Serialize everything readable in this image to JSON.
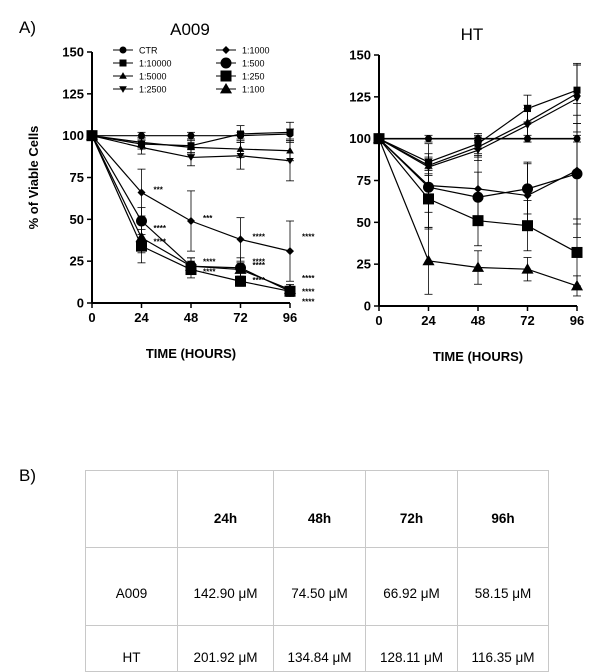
{
  "panel_labels": {
    "a": "A)",
    "b": "B)"
  },
  "chart_data": [
    {
      "type": "line",
      "title": "A009",
      "xlabel": "TIME (HOURS)",
      "ylabel": "% of Viable Cells",
      "xlim": [
        0,
        96
      ],
      "ylim": [
        0,
        150
      ],
      "xticks": [
        "0",
        "24",
        "48",
        "72",
        "96"
      ],
      "yticks": [
        "0",
        "25",
        "50",
        "75",
        "100",
        "125",
        "150"
      ],
      "x": [
        0,
        24,
        48,
        72,
        96
      ],
      "series": [
        {
          "name": "CTR",
          "marker": "circle-small",
          "values": [
            100,
            100,
            100,
            100,
            101
          ],
          "err": [
            0,
            2,
            2,
            2,
            3
          ]
        },
        {
          "name": "1:10000",
          "marker": "square-small",
          "values": [
            100,
            95,
            94,
            101,
            102
          ],
          "err": [
            0,
            3,
            4,
            5,
            6
          ]
        },
        {
          "name": "1:5000",
          "marker": "triangle-up-small",
          "values": [
            100,
            96,
            93,
            92,
            91
          ],
          "err": [
            0,
            3,
            4,
            5,
            6
          ]
        },
        {
          "name": "1:2500",
          "marker": "triangle-down-small",
          "values": [
            100,
            93,
            87,
            88,
            85
          ],
          "err": [
            0,
            4,
            5,
            8,
            12
          ]
        },
        {
          "name": "1:1000",
          "marker": "diamond",
          "values": [
            100,
            66,
            49,
            38,
            31
          ],
          "err": [
            0,
            14,
            18,
            13,
            18
          ]
        },
        {
          "name": "1:500",
          "marker": "circle",
          "values": [
            100,
            49,
            22,
            21,
            7
          ],
          "err": [
            0,
            8,
            5,
            6,
            3
          ]
        },
        {
          "name": "1:250",
          "marker": "square",
          "values": [
            100,
            34,
            20,
            13,
            7
          ],
          "err": [
            0,
            10,
            5,
            3,
            3
          ]
        },
        {
          "name": "1:100",
          "marker": "triangle-up",
          "values": [
            100,
            39,
            22,
            20,
            8
          ],
          "err": [
            0,
            9,
            5,
            4,
            3
          ]
        }
      ],
      "annotations": [
        {
          "x": 24,
          "y": 66,
          "text": "***"
        },
        {
          "x": 24,
          "y": 43,
          "text": "****"
        },
        {
          "x": 24,
          "y": 35,
          "text": "****"
        },
        {
          "x": 48,
          "y": 49,
          "text": "***"
        },
        {
          "x": 48,
          "y": 23,
          "text": "****"
        },
        {
          "x": 48,
          "y": 17,
          "text": "****"
        },
        {
          "x": 72,
          "y": 38,
          "text": "****"
        },
        {
          "x": 72,
          "y": 21,
          "text": "****"
        },
        {
          "x": 72,
          "y": 12,
          "text": "****"
        },
        {
          "x": 72,
          "y": 23,
          "text": "****"
        },
        {
          "x": 96,
          "y": 38,
          "text": "****"
        },
        {
          "x": 96,
          "y": 13,
          "text": "****"
        },
        {
          "x": 96,
          "y": 5,
          "text": "****"
        },
        {
          "x": 96,
          "y": -1,
          "text": "****"
        }
      ]
    },
    {
      "type": "line",
      "title": "HT",
      "xlabel": "TIME (HOURS)",
      "ylabel": "",
      "xlim": [
        0,
        96
      ],
      "ylim": [
        0,
        150
      ],
      "xticks": [
        "0",
        "24",
        "48",
        "72",
        "96"
      ],
      "yticks": [
        "0",
        "25",
        "50",
        "75",
        "100",
        "125",
        "150"
      ],
      "x": [
        0,
        24,
        48,
        72,
        96
      ],
      "series": [
        {
          "name": "CTR",
          "marker": "circle-small",
          "values": [
            100,
            100,
            100,
            100,
            100
          ],
          "err": [
            0,
            2,
            2,
            2,
            2
          ]
        },
        {
          "name": "1:10000",
          "marker": "square-small",
          "values": [
            100,
            86,
            97,
            118,
            129
          ],
          "err": [
            0,
            5,
            6,
            8,
            15
          ]
        },
        {
          "name": "1:5000",
          "marker": "triangle-up-small",
          "values": [
            100,
            84,
            95,
            110,
            127
          ],
          "err": [
            0,
            5,
            6,
            10,
            18
          ]
        },
        {
          "name": "1:2500",
          "marker": "triangle-down-small",
          "values": [
            100,
            83,
            93,
            108,
            124
          ],
          "err": [
            0,
            5,
            6,
            10,
            20
          ]
        },
        {
          "name": "1:1000",
          "marker": "diamond",
          "values": [
            100,
            72,
            70,
            66,
            81
          ],
          "err": [
            0,
            25,
            20,
            20,
            40
          ]
        },
        {
          "name": "1:500",
          "marker": "circle",
          "values": [
            100,
            71,
            65,
            70,
            79
          ],
          "err": [
            0,
            15,
            15,
            15,
            30
          ]
        },
        {
          "name": "1:250",
          "marker": "square",
          "values": [
            100,
            64,
            51,
            48,
            32
          ],
          "err": [
            0,
            18,
            15,
            15,
            20
          ]
        },
        {
          "name": "1:100",
          "marker": "triangle-up",
          "values": [
            100,
            27,
            23,
            22,
            12
          ],
          "err": [
            0,
            20,
            10,
            7,
            6
          ]
        }
      ],
      "annotations": []
    }
  ],
  "table": {
    "headers": [
      "",
      "24h",
      "48h",
      "72h",
      "96h"
    ],
    "rows": [
      {
        "label": "A009",
        "values": [
          "142.90 μM",
          "74.50 μM",
          "66.92 μM",
          "58.15 μM"
        ]
      },
      {
        "label": "HT",
        "values": [
          "201.92 μM",
          "134.84 μM",
          "128.11 μM",
          "116.35 μM"
        ]
      }
    ]
  }
}
